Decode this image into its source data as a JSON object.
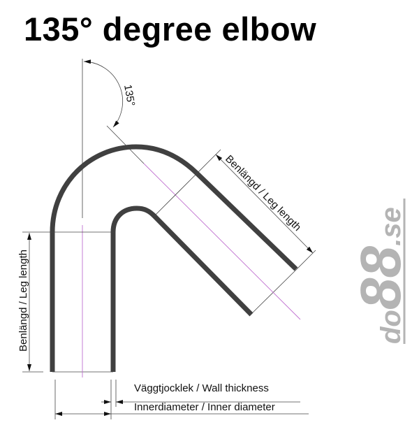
{
  "title": "135° degree elbow",
  "angle_label": "135°",
  "labels": {
    "leg_length_diagonal": "Benlängd / Leg length",
    "leg_length_vertical": "Benlängd / Leg length",
    "wall_thickness": "Väggtjocklek / Wall thickness",
    "inner_diameter": "Innerdiameter / Inner diameter"
  },
  "logo": "do88.se",
  "colors": {
    "tube": "#404040",
    "centerline": "#c070d0",
    "logo": "#b4b4b4"
  }
}
